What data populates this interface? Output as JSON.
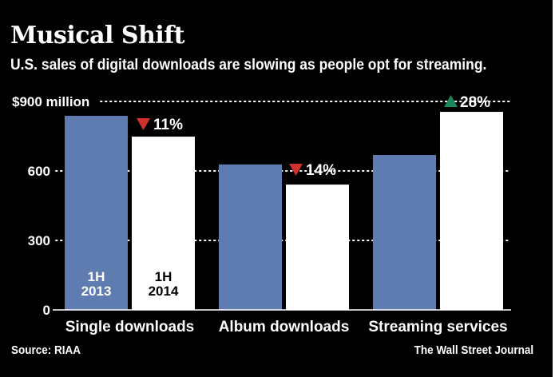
{
  "header": {
    "title": "Musical Shift",
    "subtitle": "U.S. sales of digital downloads are slowing as people opt for streaming."
  },
  "footer": {
    "source": "Source: RIAA",
    "credit": "The Wall Street Journal"
  },
  "colors": {
    "background": "#000000",
    "series_2013": "#5f7cb0",
    "series_2014": "#ffffff",
    "decline": "#d0312d",
    "increase": "#1a8a5a",
    "text": "#ffffff"
  },
  "chart_data": {
    "type": "bar",
    "title": "Musical Shift",
    "subtitle": "U.S. sales of digital downloads are slowing as people opt for streaming.",
    "xlabel": "",
    "ylabel": "",
    "unit": "$ million",
    "ylim": [
      0,
      900
    ],
    "yticks": [
      0,
      300,
      600,
      900
    ],
    "ytick_labels": [
      "0",
      "300",
      "600",
      "$900 million"
    ],
    "grid": "dotted horizontal",
    "categories": [
      "Single downloads",
      "Album downloads",
      "Streaming services"
    ],
    "series": [
      {
        "name": "1H 2013",
        "label_line1": "1H",
        "label_line2": "2013",
        "values": [
          838,
          628,
          669
        ]
      },
      {
        "name": "1H 2014",
        "label_line1": "1H",
        "label_line2": "2014",
        "values": [
          748,
          541,
          855
        ]
      }
    ],
    "annotations": [
      {
        "category": "Single downloads",
        "direction": "down",
        "text": "11%"
      },
      {
        "category": "Album downloads",
        "direction": "down",
        "text": "14%"
      },
      {
        "category": "Streaming services",
        "direction": "up",
        "text": "28%"
      }
    ],
    "legend": "inline labels inside first pair of bars"
  }
}
